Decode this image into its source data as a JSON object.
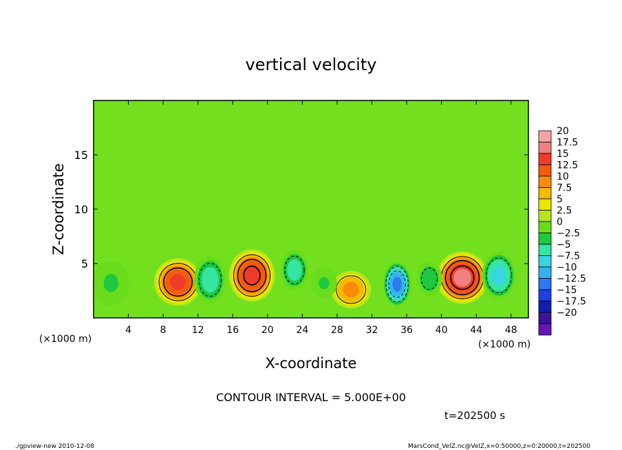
{
  "chart_data": {
    "type": "heatmap",
    "title": "vertical velocity",
    "xlabel": "X-coordinate",
    "ylabel": "Z-coordinate",
    "x_unit": "(×1000 m)",
    "xlim": [
      0,
      50
    ],
    "ylim": [
      0,
      20
    ],
    "x_ticks": [
      "4",
      "8",
      "12",
      "16",
      "20",
      "24",
      "28",
      "32",
      "36",
      "40",
      "44",
      "48"
    ],
    "y_ticks": [
      "5",
      "10",
      "15"
    ],
    "colorbar_labels": [
      "20",
      "17.5",
      "15",
      "12.5",
      "10",
      "7.5",
      "5",
      "2.5",
      "0",
      "−2.5",
      "−5",
      "−7.5",
      "−10",
      "−12.5",
      "−15",
      "−17.5",
      "−20"
    ],
    "colorbar_colors": [
      "#f5a3a3",
      "#f08080",
      "#ee3b2b",
      "#f25c0c",
      "#f98c0a",
      "#f7b900",
      "#e9e600",
      "#b9e61a",
      "#69dd1c",
      "#1ec840",
      "#36e4a4",
      "#37d6e1",
      "#35b3f0",
      "#2b78f0",
      "#1e3ee6",
      "#101fb0",
      "#3a1399",
      "#6516b5"
    ],
    "background_color": "#72e01e",
    "grid": false,
    "legend": "colorbar-right",
    "cells": [
      {
        "x": 9.7,
        "z": 3.3,
        "sx": 2.4,
        "sz": 1.9,
        "w": 14
      },
      {
        "x": 18.2,
        "z": 3.9,
        "sx": 2.3,
        "sz": 2.1,
        "w": 15
      },
      {
        "x": 29.6,
        "z": 2.6,
        "sx": 2.0,
        "sz": 1.5,
        "w": 9
      },
      {
        "x": 42.4,
        "z": 3.7,
        "sx": 2.6,
        "sz": 2.1,
        "w": 17
      },
      {
        "x": 13.4,
        "z": 3.5,
        "sx": 1.6,
        "sz": 1.9,
        "w": -7
      },
      {
        "x": 23.1,
        "z": 4.4,
        "sx": 1.4,
        "sz": 1.6,
        "w": -7
      },
      {
        "x": 34.9,
        "z": 3.1,
        "sx": 1.4,
        "sz": 1.8,
        "w": -14
      },
      {
        "x": 38.6,
        "z": 3.6,
        "sx": 1.3,
        "sz": 1.4,
        "w": -5
      },
      {
        "x": 46.6,
        "z": 3.9,
        "sx": 1.7,
        "sz": 1.9,
        "w": -9
      },
      {
        "x": 26.5,
        "z": 3.2,
        "sx": 1.3,
        "sz": 1.2,
        "w": -3
      },
      {
        "x": 2.0,
        "z": 3.2,
        "sx": 1.8,
        "sz": 1.8,
        "w": -3
      }
    ],
    "contour_interval_text": "CONTOUR INTERVAL = 5.000E+00",
    "time_text": "t=202500 s"
  },
  "footer": {
    "left": "./gpview-new   2010-12-08",
    "right": "MarsCond_VelZ.nc@VelZ,x=0:50000,z=0:20000,t=202500"
  }
}
